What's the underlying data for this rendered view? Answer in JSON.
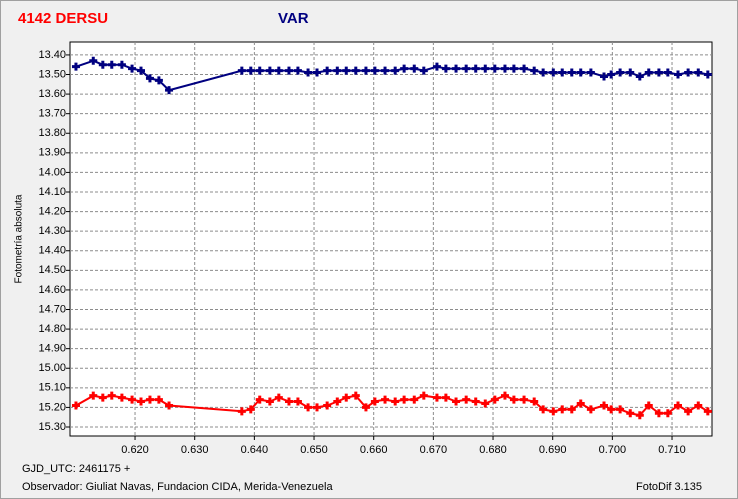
{
  "chart_data": {
    "type": "scatter-line",
    "title": "4142 DERSU",
    "subtitle": "VAR",
    "ylabel": "Fotometría absoluta",
    "footer": {
      "date": "GJD_UTC: 2461175 +",
      "observer": "Observador: Giuliat Navas, Fundacion CIDA, Merida-Venezuela",
      "software": "FotoDif 3.135"
    },
    "x": [
      0.6101,
      0.613,
      0.6146,
      0.6161,
      0.6178,
      0.6195,
      0.621,
      0.6225,
      0.624,
      0.6257,
      0.6379,
      0.6394,
      0.6409,
      0.6426,
      0.6441,
      0.6458,
      0.6473,
      0.649,
      0.6505,
      0.6522,
      0.6539,
      0.6554,
      0.657,
      0.6587,
      0.6602,
      0.6619,
      0.6636,
      0.6651,
      0.6668,
      0.6684,
      0.6706,
      0.6721,
      0.6738,
      0.6755,
      0.6771,
      0.6787,
      0.6803,
      0.682,
      0.6835,
      0.6852,
      0.6869,
      0.6884,
      0.6901,
      0.6916,
      0.6932,
      0.6947,
      0.6964,
      0.6986,
      0.6998,
      0.7013,
      0.703,
      0.7046,
      0.7061,
      0.7078,
      0.7093,
      0.711,
      0.7127,
      0.7144,
      0.716
    ],
    "series": [
      {
        "color": "#000080",
        "values": [
          13.46,
          13.43,
          13.45,
          13.45,
          13.45,
          13.47,
          13.48,
          13.52,
          13.53,
          13.58,
          13.48,
          13.48,
          13.48,
          13.48,
          13.48,
          13.48,
          13.48,
          13.49,
          13.49,
          13.48,
          13.48,
          13.48,
          13.48,
          13.48,
          13.48,
          13.48,
          13.48,
          13.47,
          13.47,
          13.48,
          13.46,
          13.47,
          13.47,
          13.47,
          13.47,
          13.47,
          13.47,
          13.47,
          13.47,
          13.47,
          13.48,
          13.49,
          13.49,
          13.49,
          13.49,
          13.49,
          13.49,
          13.51,
          13.5,
          13.49,
          13.49,
          13.51,
          13.49,
          13.49,
          13.49,
          13.5,
          13.49,
          13.49,
          13.5
        ]
      },
      {
        "color": "#ff0000",
        "values": [
          15.19,
          15.14,
          15.15,
          15.14,
          15.15,
          15.16,
          15.17,
          15.16,
          15.16,
          15.19,
          15.22,
          15.21,
          15.16,
          15.17,
          15.15,
          15.17,
          15.17,
          15.2,
          15.2,
          15.19,
          15.17,
          15.15,
          15.14,
          15.2,
          15.17,
          15.16,
          15.17,
          15.16,
          15.16,
          15.14,
          15.15,
          15.15,
          15.17,
          15.16,
          15.17,
          15.18,
          15.16,
          15.14,
          15.16,
          15.16,
          15.17,
          15.21,
          15.22,
          15.21,
          15.21,
          15.18,
          15.21,
          15.19,
          15.21,
          15.21,
          15.23,
          15.24,
          15.19,
          15.23,
          15.23,
          15.19,
          15.22,
          15.19,
          15.22
        ]
      }
    ],
    "xlim": [
      0.6091,
      0.7167
    ],
    "ylim": [
      13.334,
      15.346
    ],
    "y_inverted": true,
    "xticks": [
      {
        "value": 0.62,
        "label": "0.620"
      },
      {
        "value": 0.63,
        "label": "0.630"
      },
      {
        "value": 0.64,
        "label": "0.640"
      },
      {
        "value": 0.65,
        "label": "0.650"
      },
      {
        "value": 0.66,
        "label": "0.660"
      },
      {
        "value": 0.67,
        "label": "0.670"
      },
      {
        "value": 0.68,
        "label": "0.680"
      },
      {
        "value": 0.69,
        "label": "0.690"
      },
      {
        "value": 0.7,
        "label": "0.700"
      },
      {
        "value": 0.71,
        "label": "0.710"
      }
    ],
    "yticks": [
      {
        "value": 13.4,
        "label": "13.40"
      },
      {
        "value": 13.5,
        "label": "13.50"
      },
      {
        "value": 13.6,
        "label": "13.60"
      },
      {
        "value": 13.7,
        "label": "13.70"
      },
      {
        "value": 13.8,
        "label": "13.80"
      },
      {
        "value": 13.9,
        "label": "13.90"
      },
      {
        "value": 14.0,
        "label": "14.00"
      },
      {
        "value": 14.1,
        "label": "14.10"
      },
      {
        "value": 14.2,
        "label": "14.20"
      },
      {
        "value": 14.3,
        "label": "14.30"
      },
      {
        "value": 14.4,
        "label": "14.40"
      },
      {
        "value": 14.5,
        "label": "14.50"
      },
      {
        "value": 14.6,
        "label": "14.60"
      },
      {
        "value": 14.7,
        "label": "14.70"
      },
      {
        "value": 14.8,
        "label": "14.80"
      },
      {
        "value": 14.9,
        "label": "14.90"
      },
      {
        "value": 15.0,
        "label": "15.00"
      },
      {
        "value": 15.1,
        "label": "15.10"
      },
      {
        "value": 15.2,
        "label": "15.20"
      },
      {
        "value": 15.3,
        "label": "15.30"
      }
    ],
    "grid": true
  }
}
